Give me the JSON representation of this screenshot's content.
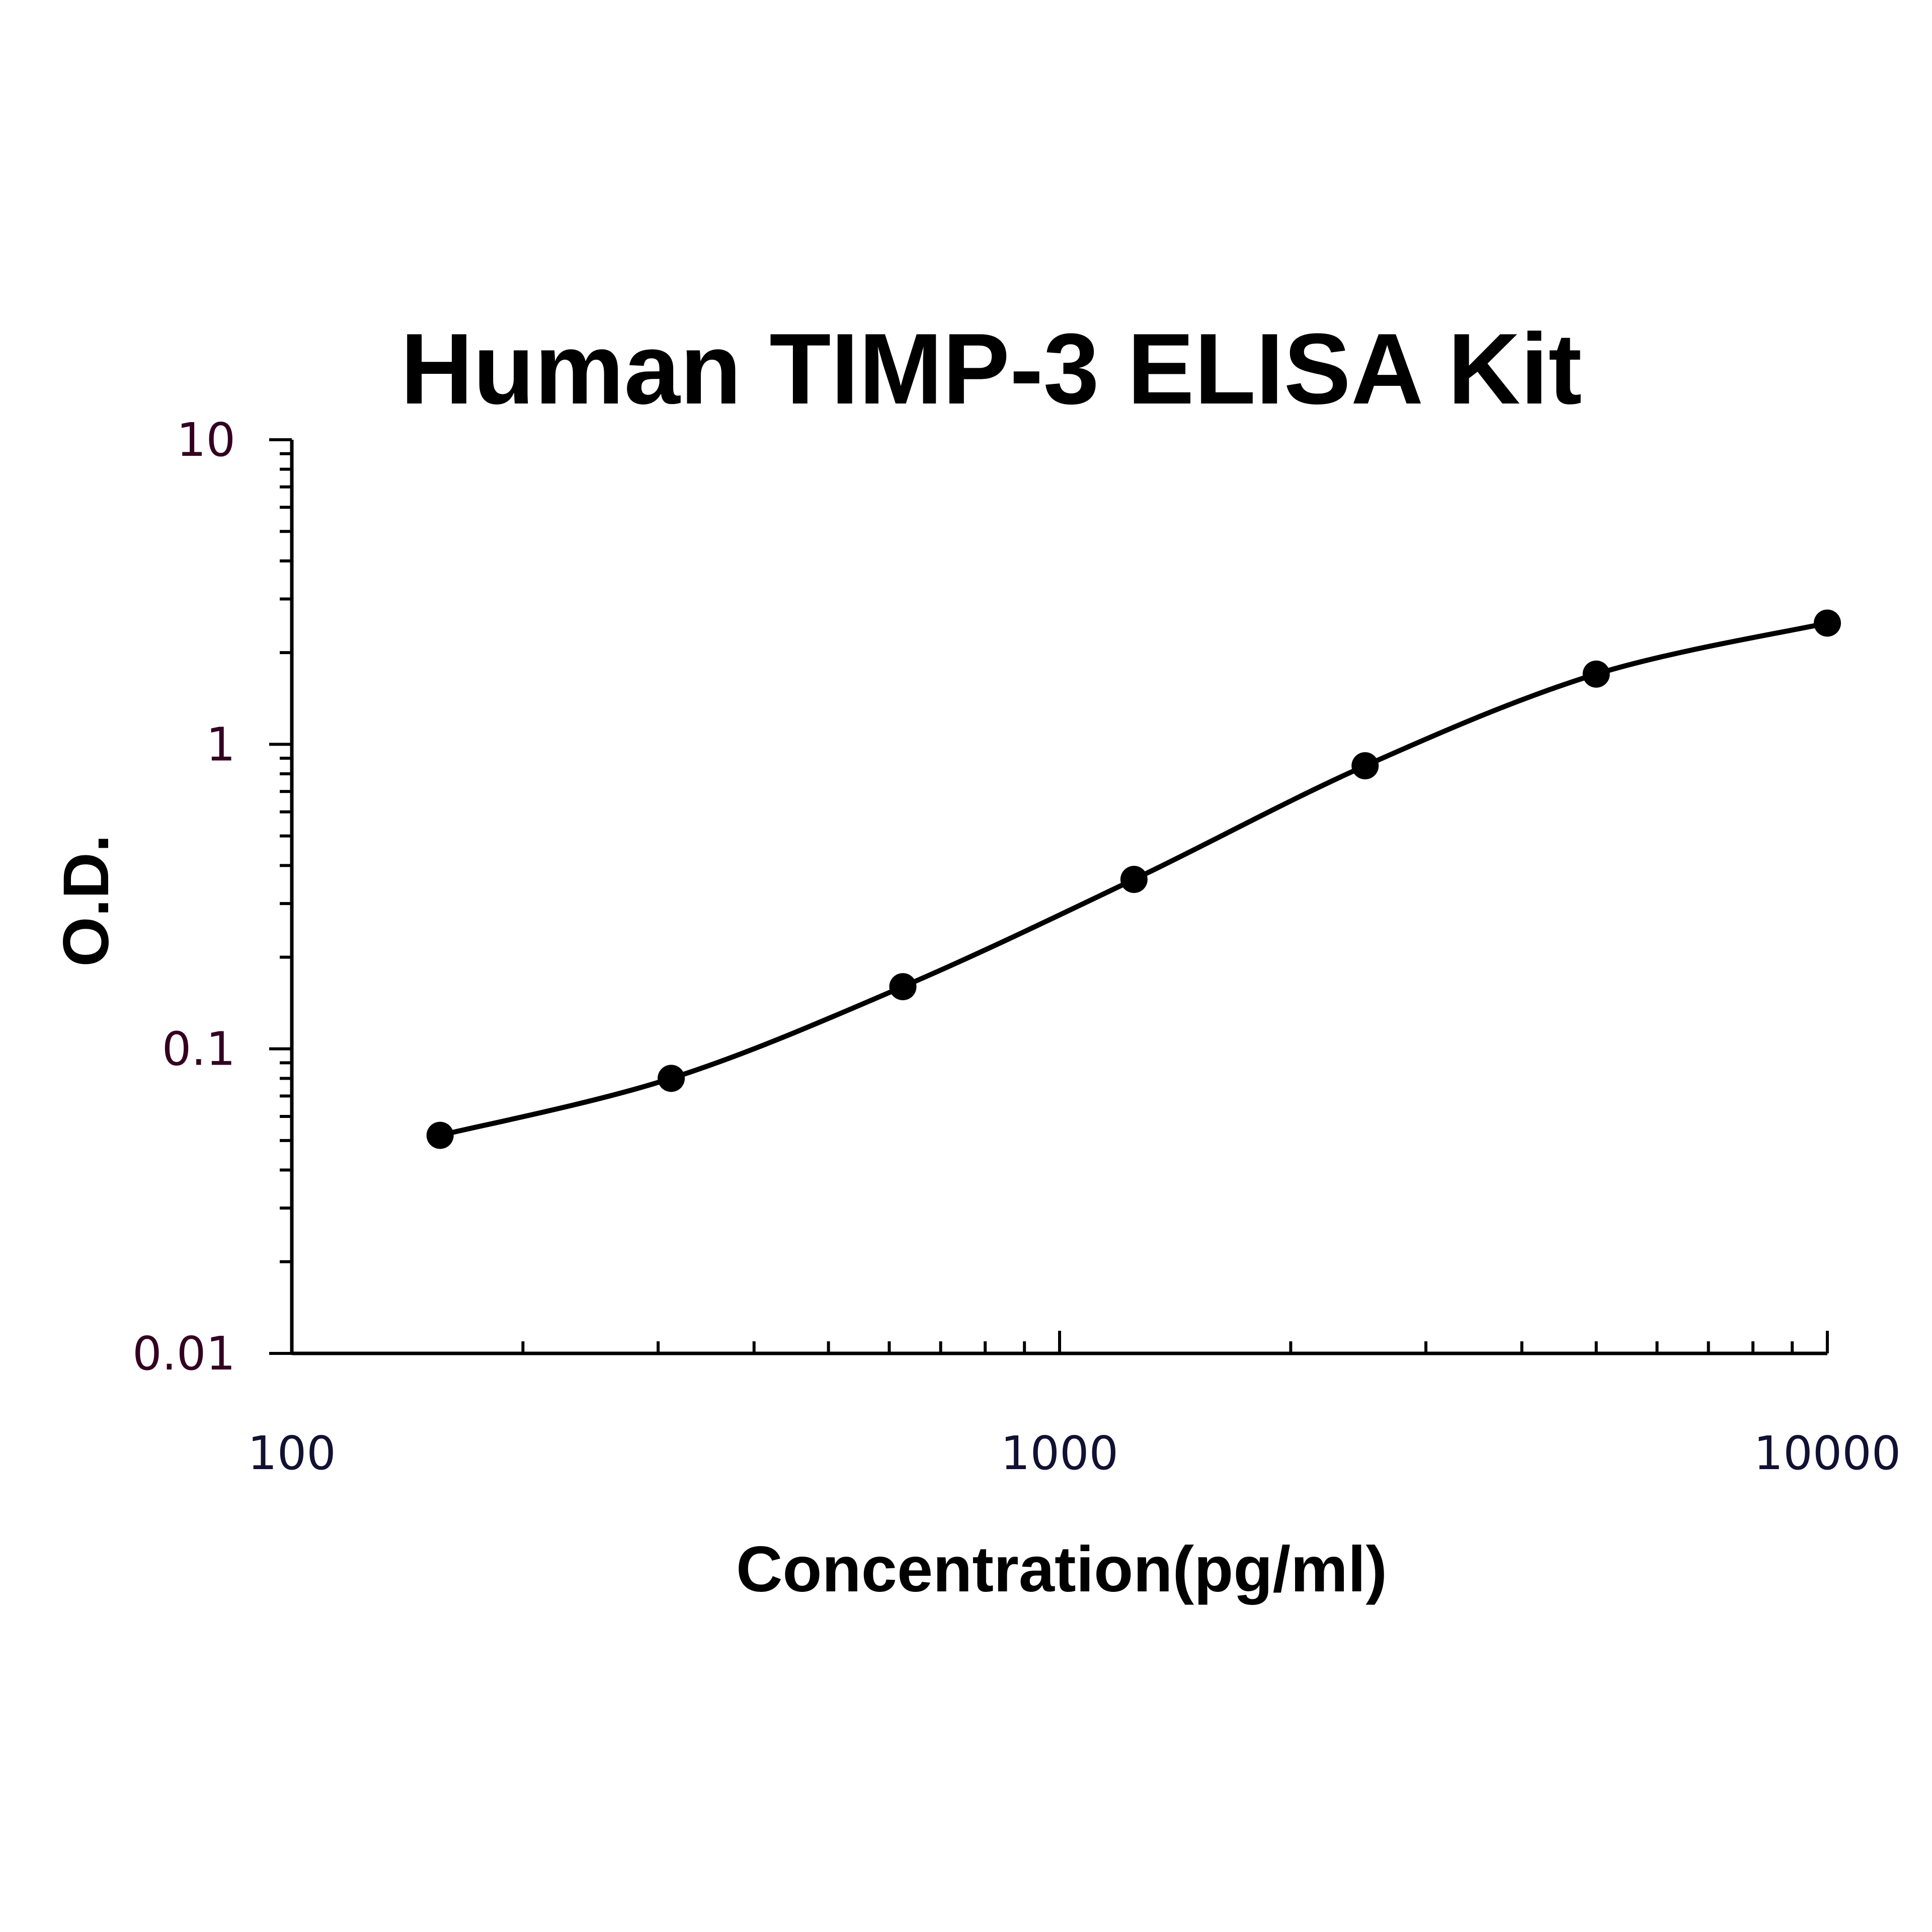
{
  "chart_data": {
    "type": "line",
    "title": "Human TIMP-3 ELISA Kit",
    "xlabel": "Concentration(pg/ml)",
    "ylabel": "O.D.",
    "x_scale": "log",
    "y_scale": "log",
    "xlim": [
      100,
      10000
    ],
    "ylim": [
      0.01,
      10
    ],
    "x_ticks": [
      100,
      1000,
      10000
    ],
    "x_tick_labels": [
      "100",
      "1000",
      "10000"
    ],
    "y_ticks": [
      0.01,
      0.1,
      1,
      10
    ],
    "y_tick_labels": [
      "0.01",
      "0.1",
      "1",
      "10"
    ],
    "grid": false,
    "legend": "none",
    "colors": {
      "line": "#000000",
      "markers": "#000000",
      "x_tick_labels": "#111133",
      "y_tick_labels": "#330022"
    },
    "series": [
      {
        "x": [
          156,
          312,
          625,
          1250,
          2500,
          5000,
          10000
        ],
        "y": [
          0.052,
          0.08,
          0.16,
          0.36,
          0.85,
          1.7,
          2.5
        ]
      }
    ]
  }
}
